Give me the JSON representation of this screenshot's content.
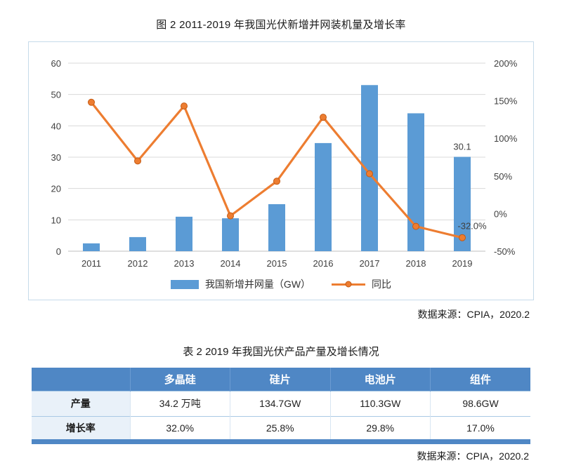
{
  "page": {
    "figure_title": "图 2 2011-2019 年我国光伏新增并网装机量及增长率",
    "figure_source": "数据来源：CPIA，2020.2",
    "table_title": "表 2 2019 年我国光伏产品产量及增长情况",
    "table_source": "数据来源：CPIA，2020.2"
  },
  "chart_data": {
    "type": "bar",
    "subtype": "combo-bar-line",
    "title": "图 2 2011-2019 年我国光伏新增并网装机量及增长率",
    "categories": [
      "2011",
      "2012",
      "2013",
      "2014",
      "2015",
      "2016",
      "2017",
      "2018",
      "2019"
    ],
    "series": [
      {
        "name": "我国新增并网量（GW）",
        "type": "bar",
        "axis": "left",
        "color": "#5B9BD5",
        "values": [
          2.5,
          4.5,
          11,
          10.5,
          15,
          34.5,
          53,
          44,
          30.1
        ]
      },
      {
        "name": "同比",
        "type": "line",
        "axis": "right",
        "color": "#ED7D31",
        "marker_stroke": "#c45911",
        "values": [
          148,
          70,
          143,
          -3,
          43,
          128,
          53,
          -17,
          -32
        ]
      }
    ],
    "left_axis": {
      "min": 0,
      "max": 60,
      "step": 10
    },
    "right_axis": {
      "min": -50,
      "max": 200,
      "step": 50,
      "suffix": "%"
    },
    "annotations": [
      {
        "text": "30.1",
        "series": "bar",
        "index": 8
      },
      {
        "text": "-32.0%",
        "series": "line",
        "index": 8
      }
    ],
    "grid": true,
    "legend_position": "bottom"
  },
  "table": {
    "columns": [
      "",
      "多晶硅",
      "硅片",
      "电池片",
      "组件"
    ],
    "rows": [
      {
        "label": "产量",
        "values": [
          "34.2 万吨",
          "134.7GW",
          "110.3GW",
          "98.6GW"
        ]
      },
      {
        "label": "增长率",
        "values": [
          "32.0%",
          "25.8%",
          "29.8%",
          "17.0%"
        ]
      }
    ],
    "header_color": "#4f87c5"
  }
}
